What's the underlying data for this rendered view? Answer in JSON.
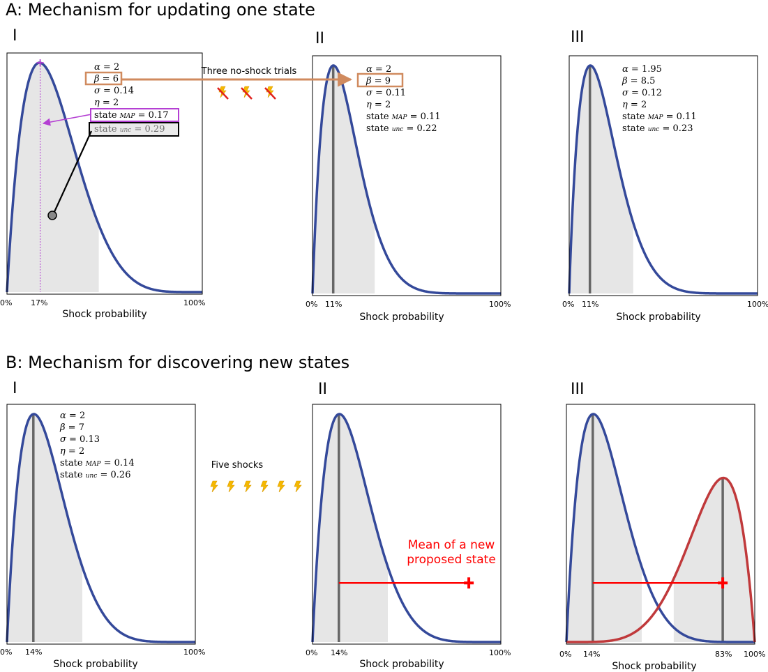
{
  "sectionA": {
    "title": "A: Mechanism for updating one state",
    "note": "Three no-shock trials",
    "panels": [
      {
        "roman": "I",
        "params": {
          "alpha": "2",
          "beta": "6",
          "sigma": "0.14",
          "eta": "2",
          "map": "0.17",
          "unc": "0.29"
        },
        "ticks": {
          "zero": "0%",
          "peak": "17%",
          "hundred": "100%"
        },
        "xlabel": "Shock probability",
        "distribution": {
          "alpha": 2,
          "beta": 6,
          "mode": 0.17,
          "shaded_to": 0.47
        }
      },
      {
        "roman": "II",
        "params": {
          "alpha": "2",
          "beta": "9",
          "sigma": "0.11",
          "eta": "2",
          "map": "0.11",
          "unc": "0.22"
        },
        "ticks": {
          "zero": "0%",
          "peak": "11%",
          "hundred": "100%"
        },
        "xlabel": "Shock probability",
        "distribution": {
          "alpha": 2,
          "beta": 9,
          "mode": 0.11,
          "shaded_to": 0.33
        }
      },
      {
        "roman": "III",
        "params": {
          "alpha": "1.95",
          "beta": "8.5",
          "sigma": "0.12",
          "eta": "2",
          "map": "0.11",
          "unc": "0.23"
        },
        "ticks": {
          "zero": "0%",
          "peak": "11%",
          "hundred": "100%"
        },
        "xlabel": "Shock probability",
        "distribution": {
          "alpha": 1.95,
          "beta": 8.5,
          "mode": 0.11,
          "shaded_to": 0.34
        }
      }
    ]
  },
  "sectionB": {
    "title": "B: Mechanism for discovering new states",
    "note": "Five shocks",
    "red_note_line1": "Mean of a new",
    "red_note_line2": "proposed state",
    "panels": [
      {
        "roman": "I",
        "params": {
          "alpha": "2",
          "beta": "7",
          "sigma": "0.13",
          "eta": "2",
          "map": "0.14",
          "unc": "0.26"
        },
        "ticks": {
          "zero": "0%",
          "peak": "14%",
          "hundred": "100%"
        },
        "xlabel": "Shock probability",
        "distribution": {
          "alpha": 2,
          "beta": 7,
          "mode": 0.14,
          "shaded_to": 0.4
        }
      },
      {
        "roman": "II",
        "ticks": {
          "zero": "0%",
          "peak": "14%",
          "hundred": "100%"
        },
        "xlabel": "Shock probability",
        "distribution": {
          "alpha": 2,
          "beta": 7,
          "mode": 0.14,
          "shaded_to": 0.4
        },
        "proposed_mean": 0.83
      },
      {
        "roman": "III",
        "ticks": {
          "zero": "0%",
          "peak": "14%",
          "hundred": "100%",
          "peak2": "83%"
        },
        "xlabel": "Shock probability",
        "distribution": {
          "alpha": 2,
          "beta": 7,
          "mode": 0.14,
          "shaded_to": 0.4
        },
        "second_distribution": {
          "alpha": 6,
          "beta": 2,
          "mode": 0.83,
          "shaded_from": 0.57
        },
        "proposed_mean": 0.83
      }
    ]
  },
  "colors": {
    "blue": "#34499a",
    "red": "#c0393b",
    "gray_line": "#666666",
    "shade": "#e6e6e6",
    "beta_box": "#d08a5e",
    "map_box": "#b43fd3",
    "bolt": "#f5b800",
    "cross": "#e0201c"
  }
}
